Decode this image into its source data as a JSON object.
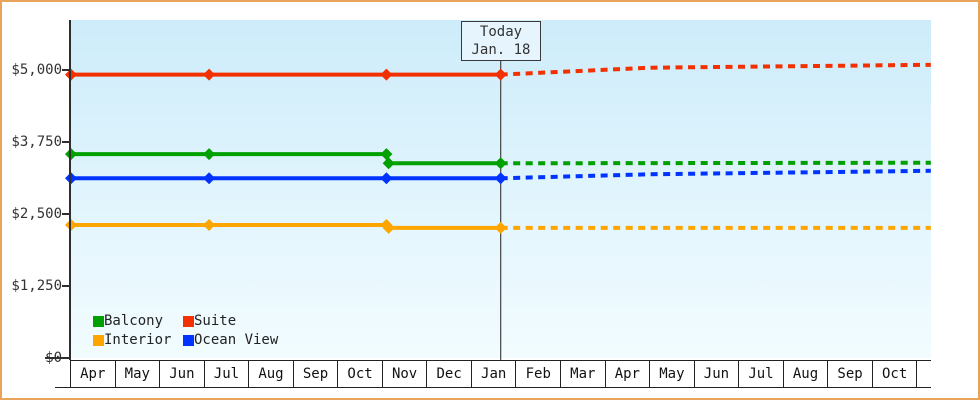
{
  "chart": {
    "today_box": {
      "line1": "Today",
      "line2": "Jan. 18"
    },
    "y_axis": {
      "ticks": [
        {
          "label": "$5,000",
          "value": 5000
        },
        {
          "label": "$3,750",
          "value": 3750
        },
        {
          "label": "$2,500",
          "value": 2500
        },
        {
          "label": "$1,250",
          "value": 1250
        },
        {
          "label": "$0",
          "value": 0
        }
      ]
    },
    "x_axis": {
      "months": [
        "Apr",
        "May",
        "Jun",
        "Jul",
        "Aug",
        "Sep",
        "Oct",
        "Nov",
        "Dec",
        "Jan",
        "Feb",
        "Mar",
        "Apr",
        "May",
        "Jun",
        "Jul",
        "Aug",
        "Sep",
        "Oct"
      ]
    },
    "legend": [
      {
        "label": "Balcony",
        "color": "#00a000"
      },
      {
        "label": "Suite",
        "color": "#f23000"
      },
      {
        "label": "Interior",
        "color": "#ffa500"
      },
      {
        "label": "Ocean View",
        "color": "#0033ff"
      }
    ],
    "colors": {
      "frame_border": "#e9a45c",
      "axis": "#2e2e2e",
      "plot_bg_top": "#cdecfa",
      "plot_bg_bottom": "#f2fcff",
      "today_line": "#444444"
    }
  },
  "chart_data": {
    "type": "line",
    "title": "",
    "x_categories": [
      "Apr",
      "May",
      "Jun",
      "Jul",
      "Aug",
      "Sep",
      "Oct",
      "Nov",
      "Dec",
      "Jan",
      "Feb",
      "Mar",
      "Apr",
      "May",
      "Jun",
      "Jul",
      "Aug",
      "Sep",
      "Oct"
    ],
    "x_unit": "month_index (0 = left edge / first Apr; fractional = day within month; 19.3 = right edge of plot)",
    "y_ticks": [
      0,
      1250,
      2500,
      3750,
      5000
    ],
    "y_tick_labels": [
      "$0",
      "$1,250",
      "$2,500",
      "$3,750",
      "$5,000"
    ],
    "ylim": [
      0,
      5870
    ],
    "grid": false,
    "legend_position": "bottom-left",
    "today": {
      "label": "Today",
      "date": "Jan. 18",
      "month_index": 9.645
    },
    "style_note": "solid line with diamond markers = price history; dotted line = forecast after Today",
    "series": [
      {
        "name": "Balcony",
        "color": "#00a000",
        "history": [
          [
            0,
            3540
          ],
          [
            3.1,
            3540
          ],
          [
            7.08,
            3540
          ],
          [
            7.13,
            3380
          ],
          [
            9.645,
            3380
          ]
        ],
        "forecast": [
          [
            9.645,
            3380
          ],
          [
            19.3,
            3390
          ]
        ]
      },
      {
        "name": "Suite",
        "color": "#f23000",
        "history": [
          [
            0,
            4920
          ],
          [
            3.1,
            4920
          ],
          [
            7.08,
            4920
          ],
          [
            9.645,
            4920
          ]
        ],
        "forecast": [
          [
            9.645,
            4920
          ],
          [
            13,
            5040
          ],
          [
            19.3,
            5090
          ]
        ]
      },
      {
        "name": "Interior",
        "color": "#ffa500",
        "history": [
          [
            0,
            2310
          ],
          [
            3.1,
            2310
          ],
          [
            7.08,
            2310
          ],
          [
            7.13,
            2260
          ],
          [
            9.645,
            2260
          ]
        ],
        "forecast": [
          [
            9.645,
            2260
          ],
          [
            19.3,
            2260
          ]
        ]
      },
      {
        "name": "Ocean View",
        "color": "#0033ff",
        "history": [
          [
            0,
            3120
          ],
          [
            3.1,
            3120
          ],
          [
            7.08,
            3120
          ],
          [
            9.645,
            3120
          ]
        ],
        "forecast": [
          [
            9.645,
            3120
          ],
          [
            13,
            3190
          ],
          [
            19.3,
            3250
          ]
        ]
      }
    ]
  }
}
